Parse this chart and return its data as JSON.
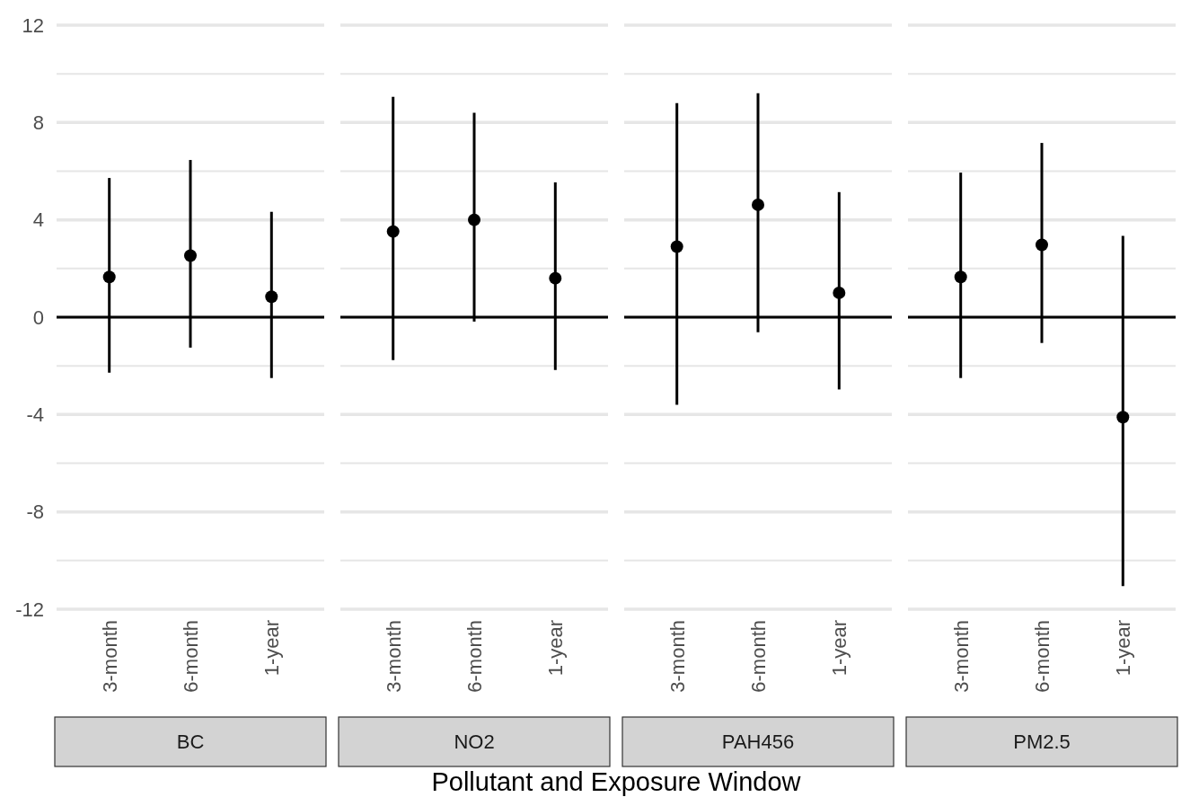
{
  "chart_data": [
    {
      "type": "scatter",
      "title": "BC",
      "xlabel": "Pollutant and Exposure Window",
      "categories": [
        "3-month",
        "6-month",
        "1-year"
      ],
      "series": [
        {
          "color": "#000000",
          "values": [
            1.65,
            2.53,
            0.84
          ],
          "errors": [
            [
              -2.28,
              5.72
            ],
            [
              -1.25,
              6.46
            ],
            [
              -2.5,
              4.33
            ]
          ]
        }
      ],
      "ylim": [
        -12,
        12
      ],
      "yticks": [
        -12,
        {
          "value": -10,
          "label": null
        },
        -8,
        {
          "value": -6,
          "label": null
        },
        -4,
        {
          "value": -2,
          "label": null
        },
        0,
        {
          "value": 2,
          "label": null
        },
        4,
        {
          "value": 6,
          "label": null
        },
        8,
        {
          "value": 10,
          "label": null
        },
        12
      ],
      "grid": "y",
      "marker": "circle",
      "ref_lines": [
        {
          "axis": "y",
          "value": 0,
          "color": "#000000"
        }
      ]
    },
    {
      "type": "scatter",
      "title": "NO2",
      "categories": [
        "3-month",
        "6-month",
        "1-year"
      ],
      "series": [
        {
          "color": "#000000",
          "values": [
            3.52,
            4.0,
            1.6
          ],
          "errors": [
            [
              -1.76,
              9.06
            ],
            [
              -0.18,
              8.4
            ],
            [
              -2.17,
              5.54
            ]
          ]
        }
      ],
      "ylim": [
        -12,
        12
      ],
      "yticks": [
        -12,
        {
          "value": -10,
          "label": null
        },
        -8,
        {
          "value": -6,
          "label": null
        },
        -4,
        {
          "value": -2,
          "label": null
        },
        0,
        {
          "value": 2,
          "label": null
        },
        4,
        {
          "value": 6,
          "label": null
        },
        8,
        {
          "value": 10,
          "label": null
        },
        12
      ],
      "grid": "y",
      "marker": "circle",
      "tick_labels": "x",
      "ref_lines": [
        {
          "axis": "y",
          "value": 0,
          "color": "#000000"
        }
      ]
    },
    {
      "type": "scatter",
      "title": "PAH456",
      "categories": [
        "3-month",
        "6-month",
        "1-year"
      ],
      "series": [
        {
          "color": "#000000",
          "values": [
            2.9,
            4.62,
            1.0
          ],
          "errors": [
            [
              -3.6,
              8.8
            ],
            [
              -0.62,
              9.2
            ],
            [
              -2.97,
              5.14
            ]
          ]
        }
      ],
      "ylim": [
        -12,
        12
      ],
      "yticks": [
        -12,
        {
          "value": -10,
          "label": null
        },
        -8,
        {
          "value": -6,
          "label": null
        },
        -4,
        {
          "value": -2,
          "label": null
        },
        0,
        {
          "value": 2,
          "label": null
        },
        4,
        {
          "value": 6,
          "label": null
        },
        8,
        {
          "value": 10,
          "label": null
        },
        12
      ],
      "grid": "y",
      "marker": "circle",
      "tick_labels": "x",
      "ref_lines": [
        {
          "axis": "y",
          "value": 0,
          "color": "#000000"
        }
      ]
    },
    {
      "type": "scatter",
      "title": "PM2.5",
      "categories": [
        "3-month",
        "6-month",
        "1-year"
      ],
      "series": [
        {
          "color": "#000000",
          "values": [
            1.65,
            2.97,
            -4.11
          ],
          "errors": [
            [
              -2.5,
              5.94
            ],
            [
              -1.06,
              7.16
            ],
            [
              -11.05,
              3.34
            ]
          ]
        }
      ],
      "ylim": [
        -12,
        12
      ],
      "yticks": [
        -12,
        {
          "value": -10,
          "label": null
        },
        -8,
        {
          "value": -6,
          "label": null
        },
        -4,
        {
          "value": -2,
          "label": null
        },
        0,
        {
          "value": 2,
          "label": null
        },
        4,
        {
          "value": 6,
          "label": null
        },
        8,
        {
          "value": 10,
          "label": null
        },
        12
      ],
      "grid": "y",
      "marker": "circle",
      "tick_labels": "x",
      "ref_lines": [
        {
          "axis": "y",
          "value": 0,
          "color": "#000000"
        }
      ]
    }
  ]
}
